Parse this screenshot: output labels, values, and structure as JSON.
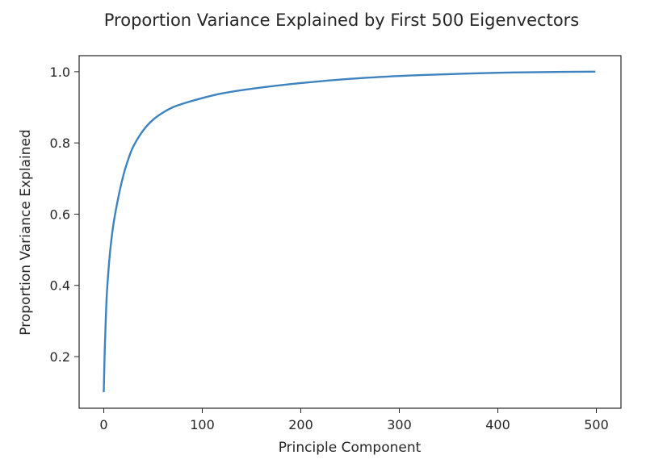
{
  "chart_data": {
    "type": "line",
    "title": "Proportion Variance Explained by First 500 Eigenvectors",
    "xlabel": "Principle Component",
    "ylabel": "Proportion Variance Explained",
    "xlim": [
      -25,
      525
    ],
    "ylim": [
      0.055,
      1.045
    ],
    "xticks": [
      0,
      100,
      200,
      300,
      400,
      500
    ],
    "yticks": [
      0.2,
      0.4,
      0.6,
      0.8,
      1.0
    ],
    "grid": false,
    "legend": "none",
    "series": [
      {
        "color": "#3c83bf",
        "x": [
          0,
          1,
          2,
          3,
          5,
          7,
          10,
          15,
          20,
          25,
          30,
          40,
          50,
          60,
          70,
          80,
          100,
          120,
          150,
          200,
          250,
          300,
          350,
          400,
          450,
          499
        ],
        "y": [
          0.1,
          0.22,
          0.3,
          0.37,
          0.45,
          0.51,
          0.575,
          0.65,
          0.71,
          0.755,
          0.79,
          0.835,
          0.865,
          0.885,
          0.9,
          0.91,
          0.926,
          0.939,
          0.952,
          0.968,
          0.98,
          0.988,
          0.993,
          0.997,
          0.999,
          1.0
        ]
      }
    ]
  }
}
